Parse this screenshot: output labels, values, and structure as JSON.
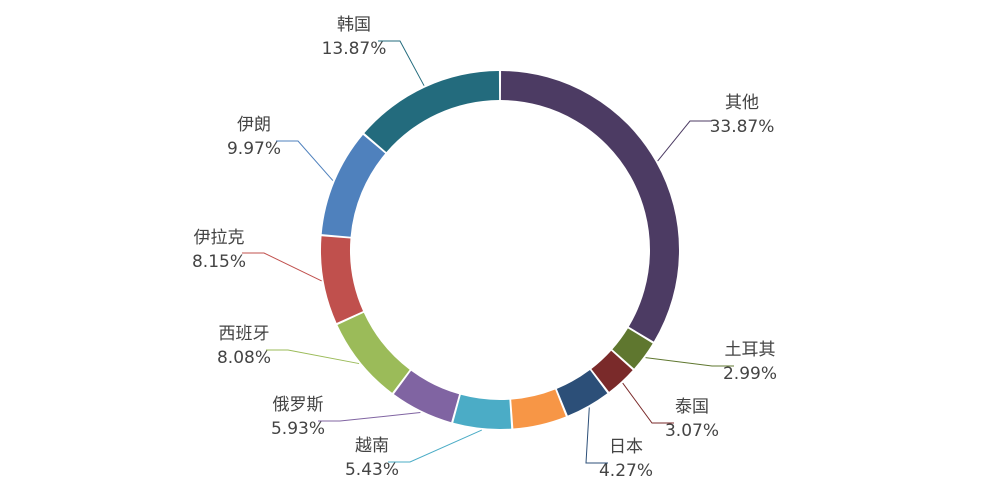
{
  "chart_data": {
    "type": "pie",
    "variant": "donut",
    "title": "",
    "start_angle_deg": 0,
    "direction": "clockwise",
    "legend": "none",
    "slices": [
      {
        "name": "其他",
        "value": 33.87,
        "label": "33.87%",
        "color": "#4c3b63"
      },
      {
        "name": "土耳其",
        "value": 2.99,
        "label": "2.99%",
        "color": "#5f772f"
      },
      {
        "name": "泰国",
        "value": 3.07,
        "label": "3.07%",
        "color": "#7a2a2a"
      },
      {
        "name": "日本",
        "value": 4.27,
        "label": "4.27%",
        "color": "#2c4f78"
      },
      {
        "name": "",
        "value": 5.03,
        "label": "",
        "color": "#f79646"
      },
      {
        "name": "越南",
        "value": 5.43,
        "label": "5.43%",
        "color": "#4bacc6"
      },
      {
        "name": "俄罗斯",
        "value": 5.93,
        "label": "5.93%",
        "color": "#8064a2"
      },
      {
        "name": "西班牙",
        "value": 8.08,
        "label": "8.08%",
        "color": "#9bbb59"
      },
      {
        "name": "伊拉克",
        "value": 8.15,
        "label": "8.15%",
        "color": "#c0504d"
      },
      {
        "name": "伊朗",
        "value": 9.97,
        "label": "9.97%",
        "color": "#4f81bd"
      },
      {
        "name": "韩国",
        "value": 13.87,
        "label": "13.87%",
        "color": "#236b7d"
      }
    ]
  }
}
